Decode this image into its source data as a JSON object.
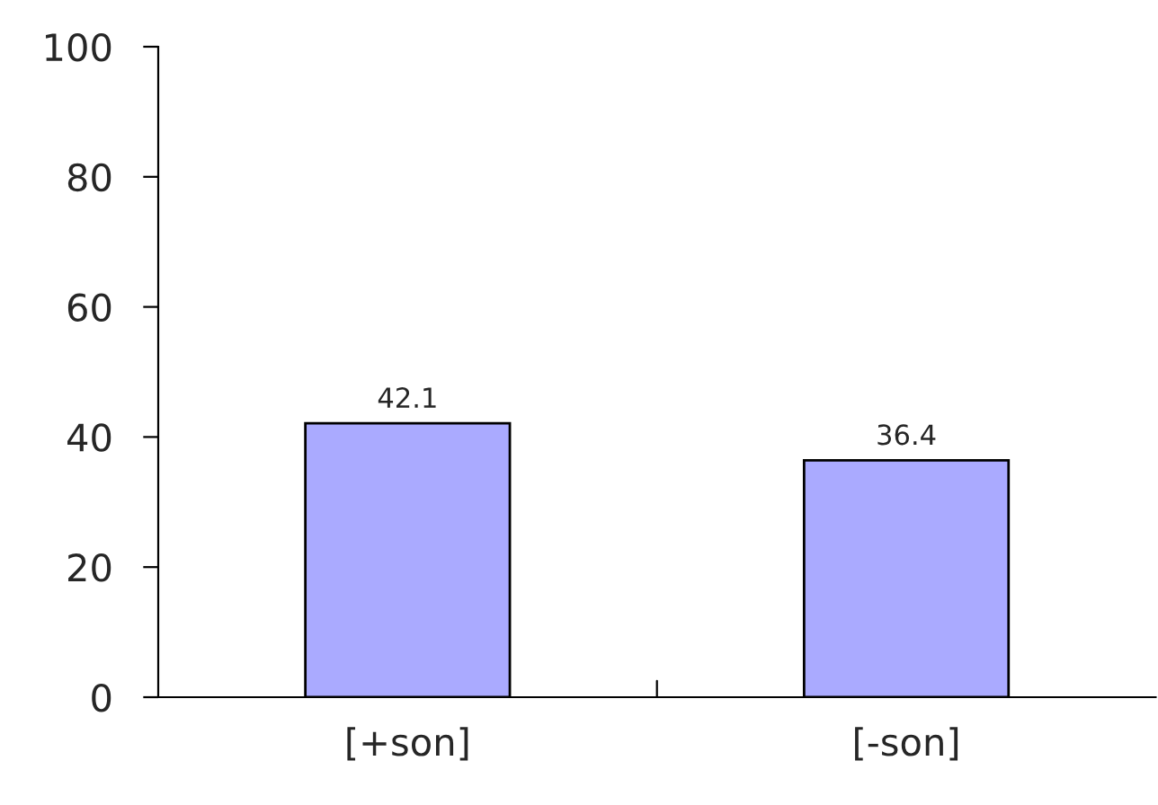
{
  "chart_data": {
    "type": "bar",
    "categories": [
      "[+son]",
      "[-son]"
    ],
    "values": [
      42.1,
      36.4
    ],
    "color": "#aaaaff",
    "ylim": [
      0,
      100
    ],
    "yticks": [
      0,
      20,
      40,
      60,
      80,
      100
    ],
    "grid": false,
    "data_labels": true
  }
}
